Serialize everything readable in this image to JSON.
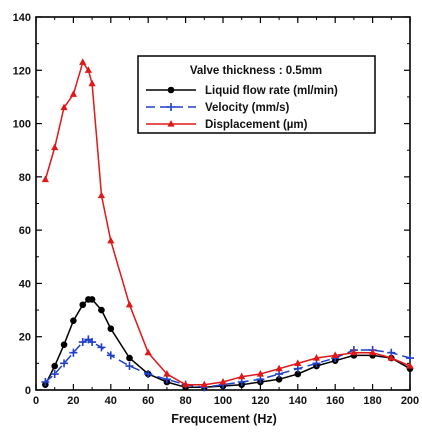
{
  "chart_data": {
    "type": "line",
    "xlabel": "Frequcement (Hz)",
    "ylabel": "",
    "xlim": [
      0,
      200
    ],
    "ylim": [
      0,
      140
    ],
    "xticks": [
      0,
      20,
      40,
      60,
      80,
      100,
      120,
      140,
      160,
      180,
      200
    ],
    "yticks": [
      0,
      20,
      40,
      60,
      80,
      100,
      120,
      140
    ],
    "grid": false,
    "legend": {
      "title": "Valve thickness : 0.5mm",
      "placement": "top-right"
    },
    "series": [
      {
        "name": "Liquid flow rate (ml/min)",
        "color": "#000000",
        "line_style": "solid",
        "marker": "circle",
        "x": [
          5,
          10,
          15,
          20,
          25,
          28,
          30,
          35,
          40,
          50,
          60,
          70,
          80,
          90,
          100,
          110,
          120,
          130,
          140,
          150,
          160,
          170,
          180,
          190,
          200
        ],
        "y": [
          2,
          9,
          17,
          26,
          32,
          34,
          34,
          30,
          23,
          12,
          6,
          3,
          1,
          1,
          1.5,
          2,
          3,
          4,
          6,
          9,
          11,
          13,
          13,
          12,
          8
        ]
      },
      {
        "name": "Velocity (mm/s)",
        "color": "#1f3fc8",
        "line_style": "dashed",
        "marker": "plus",
        "x": [
          5,
          10,
          15,
          20,
          25,
          28,
          30,
          35,
          40,
          50,
          60,
          70,
          80,
          90,
          100,
          110,
          120,
          130,
          140,
          150,
          160,
          170,
          180,
          190,
          200
        ],
        "y": [
          3,
          6,
          10,
          14,
          18,
          19,
          18,
          16,
          13,
          9,
          6,
          4,
          2,
          1,
          2,
          3,
          4,
          6,
          8,
          10,
          12,
          15,
          15,
          14,
          12
        ]
      },
      {
        "name": "Displacement (µm)",
        "color": "#e01818",
        "line_style": "solid",
        "marker": "triangle",
        "x": [
          5,
          10,
          15,
          20,
          25,
          28,
          30,
          35,
          40,
          50,
          60,
          70,
          80,
          90,
          100,
          110,
          120,
          130,
          140,
          150,
          160,
          170,
          180,
          190,
          200
        ],
        "y": [
          79,
          91,
          106,
          111,
          123,
          120,
          115,
          73,
          56,
          32,
          14,
          6,
          2,
          2,
          3,
          5,
          6,
          8,
          10,
          12,
          13,
          14,
          14,
          12,
          9
        ]
      }
    ]
  }
}
